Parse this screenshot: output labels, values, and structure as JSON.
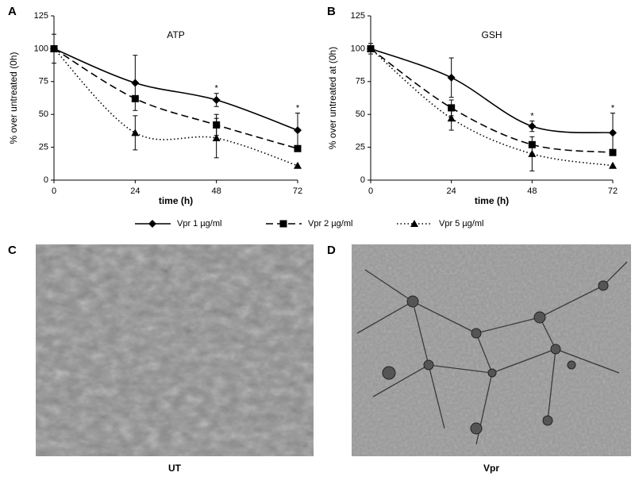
{
  "chart_data": [
    {
      "type": "line",
      "panel": "A",
      "title": "ATP",
      "x_label": "time (h)",
      "y_label": "% over untreated (0h)",
      "x": [
        0,
        24,
        48,
        72
      ],
      "xlim": [
        0,
        72
      ],
      "xticks": [
        0,
        24,
        48,
        72
      ],
      "ylim": [
        0,
        125
      ],
      "yticks": [
        0,
        25,
        50,
        75,
        100,
        125
      ],
      "grid": false,
      "series": [
        {
          "name": "Vpr 1 µg/ml",
          "color": "#000000",
          "line_style": "solid",
          "marker": "diamond",
          "values": [
            100,
            74,
            61,
            38
          ],
          "errors": [
            11,
            21,
            5,
            13
          ]
        },
        {
          "name": "Vpr 2 µg/ml",
          "color": "#000000",
          "line_style": "dashed",
          "marker": "square",
          "values": [
            100,
            62,
            42,
            24
          ],
          "errors": [
            null,
            null,
            8,
            null
          ]
        },
        {
          "name": "Vpr 5 µg/ml",
          "color": "#000000",
          "line_style": "dotted",
          "marker": "triangle",
          "values": [
            100,
            36,
            32,
            11
          ],
          "errors": [
            null,
            13,
            15,
            null
          ]
        }
      ],
      "annotations": [
        {
          "x": 48,
          "text": "*"
        },
        {
          "x": 72,
          "text": "*"
        }
      ]
    },
    {
      "type": "line",
      "panel": "B",
      "title": "GSH",
      "x_label": "time (h)",
      "y_label": "% over untreated at (0h)",
      "x": [
        0,
        24,
        48,
        72
      ],
      "xlim": [
        0,
        72
      ],
      "xticks": [
        0,
        24,
        48,
        72
      ],
      "ylim": [
        0,
        125
      ],
      "yticks": [
        0,
        25,
        50,
        75,
        100,
        125
      ],
      "grid": false,
      "series": [
        {
          "name": "Vpr 1 µg/ml",
          "color": "#000000",
          "line_style": "solid",
          "marker": "diamond",
          "values": [
            100,
            78,
            41,
            36
          ],
          "errors": [
            4,
            15,
            4,
            15
          ]
        },
        {
          "name": "Vpr 2 µg/ml",
          "color": "#000000",
          "line_style": "dashed",
          "marker": "square",
          "values": [
            100,
            55,
            27,
            21
          ],
          "errors": [
            null,
            6,
            null,
            null
          ]
        },
        {
          "name": "Vpr 5 µg/ml",
          "color": "#000000",
          "line_style": "dotted",
          "marker": "triangle",
          "values": [
            100,
            47,
            20,
            11
          ],
          "errors": [
            null,
            9,
            13,
            null
          ]
        }
      ],
      "annotations": [
        {
          "x": 48,
          "text": "*"
        },
        {
          "x": 72,
          "text": "*"
        }
      ]
    }
  ],
  "images": [
    {
      "panel": "C",
      "caption": "UT"
    },
    {
      "panel": "D",
      "caption": "Vpr"
    }
  ]
}
